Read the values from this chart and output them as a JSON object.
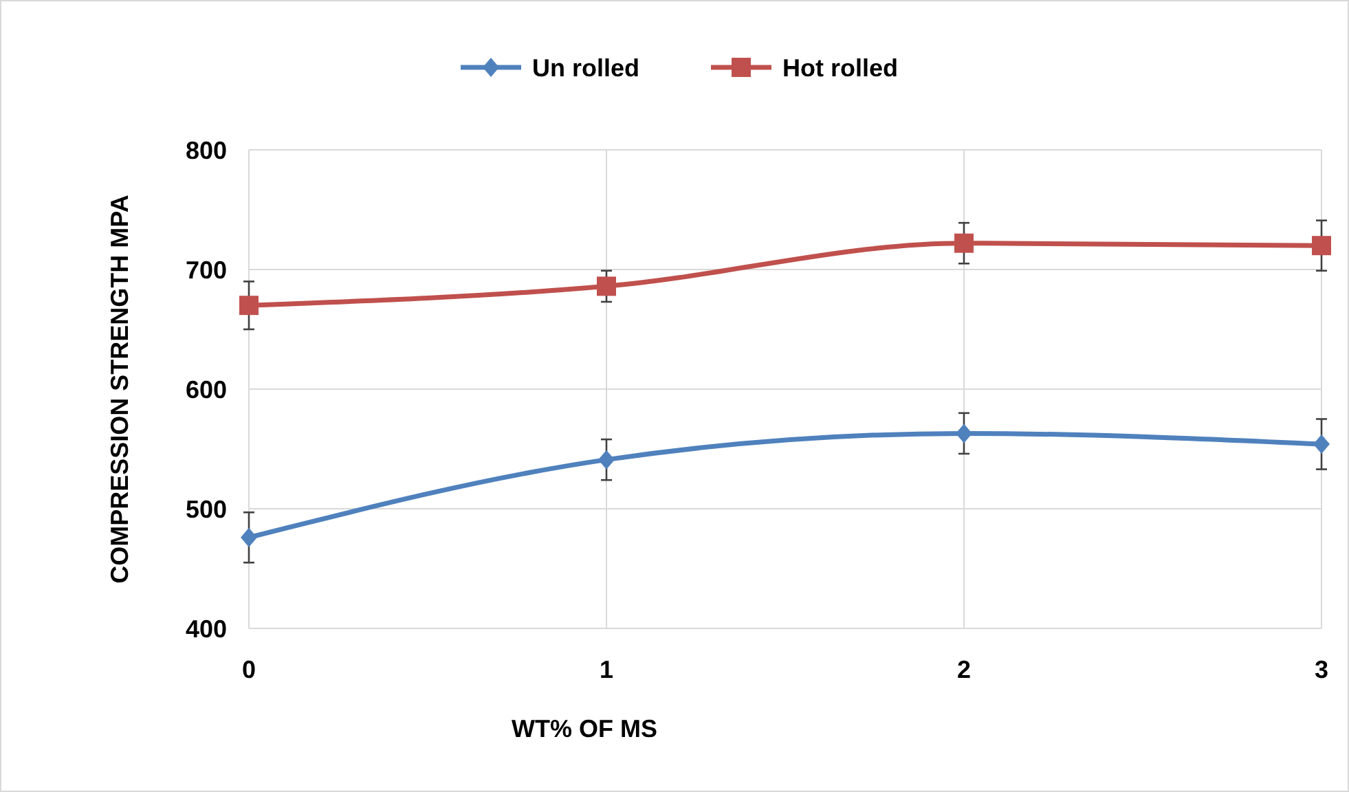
{
  "chart_data": {
    "type": "line",
    "xlabel": "WT% OF MS",
    "ylabel": "COMPRESSION STRENGTH MPA",
    "x": [
      0,
      1,
      2,
      3
    ],
    "xlim": [
      0,
      3
    ],
    "xticks": [
      0,
      1,
      2,
      3
    ],
    "ylim": [
      400,
      800
    ],
    "yticks": [
      400,
      500,
      600,
      700,
      800
    ],
    "grid": true,
    "legend": "top",
    "line_style": "solid",
    "series": [
      {
        "name": "Un rolled",
        "color": "#4f81bd",
        "marker": "diamond",
        "values": [
          476,
          541,
          563,
          554
        ],
        "errors": [
          21,
          17,
          17,
          21
        ]
      },
      {
        "name": "Hot rolled",
        "color": "#c0504d",
        "marker": "square",
        "values": [
          670,
          686,
          722,
          720
        ],
        "errors": [
          20,
          13,
          17,
          21
        ]
      }
    ]
  }
}
